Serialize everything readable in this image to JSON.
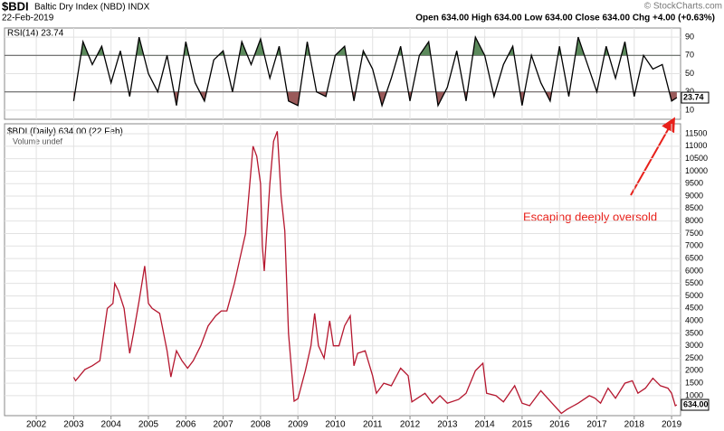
{
  "header": {
    "symbol": "$BDI",
    "name": "Baltic Dry Index (NBD) INDX",
    "date": "22-Feb-2019",
    "quote": "Open 634.00  High 634.00  Low 634.00  Close 634.00  Chg +4.00 (+0.63%)",
    "watermark": "© StockCharts.com"
  },
  "chart_data": [
    {
      "type": "line",
      "label": "RSI(14) 23.74",
      "last_label": "23.74",
      "color": "#000000",
      "overbought": 70,
      "oversold": 30,
      "overbought_color": "#5c8a5c",
      "oversold_color": "#9a5a5a",
      "xlim": [
        2001.15,
        2019.24
      ],
      "ylim": [
        0,
        100
      ],
      "yticks": [
        10,
        30,
        50,
        70,
        90
      ],
      "x": [
        2003,
        2003.25,
        2003.5,
        2003.75,
        2004,
        2004.25,
        2004.5,
        2004.75,
        2005,
        2005.25,
        2005.5,
        2005.75,
        2006,
        2006.25,
        2006.5,
        2006.75,
        2007,
        2007.25,
        2007.5,
        2007.75,
        2008,
        2008.25,
        2008.5,
        2008.75,
        2009,
        2009.25,
        2009.5,
        2009.75,
        2010,
        2010.25,
        2010.5,
        2010.75,
        2011,
        2011.25,
        2011.5,
        2011.75,
        2012,
        2012.25,
        2012.5,
        2012.75,
        2013,
        2013.25,
        2013.5,
        2013.75,
        2014,
        2014.25,
        2014.5,
        2014.75,
        2015,
        2015.25,
        2015.5,
        2015.75,
        2016,
        2016.25,
        2016.5,
        2016.75,
        2017,
        2017.25,
        2017.5,
        2017.75,
        2018,
        2018.25,
        2018.5,
        2018.75,
        2019,
        2019.14
      ],
      "values": [
        20,
        85,
        60,
        80,
        40,
        75,
        25,
        90,
        50,
        30,
        70,
        15,
        85,
        40,
        20,
        65,
        75,
        30,
        85,
        60,
        88,
        45,
        80,
        20,
        15,
        85,
        30,
        25,
        70,
        80,
        20,
        75,
        55,
        15,
        45,
        80,
        20,
        70,
        85,
        15,
        35,
        75,
        20,
        90,
        70,
        25,
        60,
        80,
        15,
        70,
        40,
        20,
        80,
        25,
        90,
        60,
        30,
        80,
        45,
        85,
        25,
        70,
        55,
        60,
        20,
        23.74
      ]
    },
    {
      "type": "line",
      "label": "$BDI (Daily) 634.00 (22 Feb)",
      "sublabel": "Volume undef",
      "last_label": "634.00",
      "annotation": "Escaping deeply oversold",
      "annotation_color": "#e8201a",
      "color": "#b5172f",
      "grid": true,
      "xlim": [
        2001.15,
        2019.24
      ],
      "ylim": [
        200,
        11900
      ],
      "xticks": [
        2002,
        2003,
        2004,
        2005,
        2006,
        2007,
        2008,
        2009,
        2010,
        2011,
        2012,
        2013,
        2014,
        2015,
        2016,
        2017,
        2018,
        2019
      ],
      "yticks": [
        1000,
        1500,
        2000,
        2500,
        3000,
        3500,
        4000,
        4500,
        5000,
        5500,
        6000,
        6500,
        7000,
        7500,
        8000,
        8500,
        9000,
        9500,
        10000,
        10500,
        11000,
        11500
      ],
      "x": [
        2003.0,
        2003.05,
        2003.3,
        2003.5,
        2003.7,
        2003.9,
        2004.05,
        2004.1,
        2004.2,
        2004.35,
        2004.5,
        2004.6,
        2004.75,
        2004.9,
        2005.0,
        2005.1,
        2005.3,
        2005.5,
        2005.6,
        2005.75,
        2005.9,
        2006.05,
        2006.2,
        2006.4,
        2006.6,
        2006.8,
        2006.95,
        2007.1,
        2007.3,
        2007.45,
        2007.6,
        2007.8,
        2007.9,
        2008.0,
        2008.05,
        2008.1,
        2008.25,
        2008.35,
        2008.45,
        2008.55,
        2008.65,
        2008.75,
        2008.9,
        2009.0,
        2009.2,
        2009.35,
        2009.45,
        2009.55,
        2009.7,
        2009.85,
        2009.95,
        2010.1,
        2010.25,
        2010.4,
        2010.5,
        2010.6,
        2010.8,
        2011.0,
        2011.1,
        2011.3,
        2011.5,
        2011.75,
        2011.95,
        2012.05,
        2012.2,
        2012.4,
        2012.6,
        2012.8,
        2013.0,
        2013.3,
        2013.5,
        2013.75,
        2013.95,
        2014.05,
        2014.3,
        2014.5,
        2014.8,
        2015.0,
        2015.2,
        2015.5,
        2015.8,
        2016.05,
        2016.2,
        2016.5,
        2016.8,
        2016.95,
        2017.1,
        2017.3,
        2017.5,
        2017.75,
        2017.95,
        2018.1,
        2018.3,
        2018.5,
        2018.7,
        2018.9,
        2019.0,
        2019.1,
        2019.14
      ],
      "values": [
        1740,
        1600,
        2050,
        2200,
        2400,
        4500,
        4700,
        5500,
        5200,
        4500,
        2700,
        3500,
        4800,
        6200,
        4700,
        4500,
        4300,
        2800,
        1750,
        2800,
        2400,
        2100,
        2400,
        3000,
        3800,
        4200,
        4400,
        4400,
        5500,
        6500,
        7500,
        11000,
        10600,
        9500,
        7000,
        6000,
        9500,
        11200,
        11600,
        9000,
        7600,
        3500,
        780,
        880,
        2000,
        3000,
        4300,
        3000,
        2500,
        4000,
        3000,
        3000,
        3800,
        4200,
        2200,
        2700,
        2800,
        1800,
        1100,
        1500,
        1400,
        2100,
        1800,
        750,
        900,
        1100,
        700,
        1000,
        700,
        850,
        1100,
        2000,
        2300,
        1100,
        1000,
        750,
        1400,
        700,
        600,
        1200,
        700,
        290,
        450,
        700,
        1000,
        900,
        700,
        1300,
        900,
        1500,
        1600,
        1100,
        1300,
        1700,
        1400,
        1300,
        1100,
        600,
        634
      ]
    }
  ]
}
